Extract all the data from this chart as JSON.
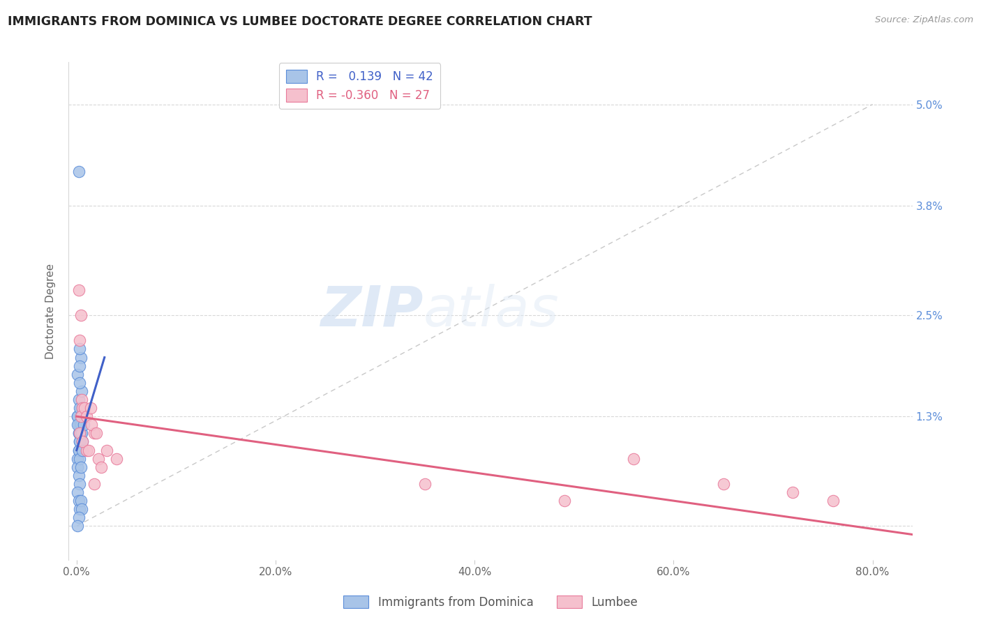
{
  "title": "IMMIGRANTS FROM DOMINICA VS LUMBEE DOCTORATE DEGREE CORRELATION CHART",
  "source": "Source: ZipAtlas.com",
  "xlabel_vals": [
    0.0,
    0.2,
    0.4,
    0.6,
    0.8
  ],
  "xlabel_labels": [
    "0.0%",
    "20.0%",
    "40.0%",
    "60.0%",
    "80.0%"
  ],
  "ylabel_vals": [
    0.0,
    0.013,
    0.025,
    0.038,
    0.05
  ],
  "ylabel_labels": [
    "",
    "1.3%",
    "2.5%",
    "3.8%",
    "5.0%"
  ],
  "xlim": [
    -0.008,
    0.84
  ],
  "ylim": [
    -0.004,
    0.055
  ],
  "blue_R": 0.139,
  "blue_N": 42,
  "pink_R": -0.36,
  "pink_N": 27,
  "blue_scatter_color": "#a8c4e8",
  "pink_scatter_color": "#f5c0cd",
  "blue_edge_color": "#5b8dd9",
  "pink_edge_color": "#e8799a",
  "blue_line_color": "#4060c8",
  "pink_line_color": "#e06080",
  "diagonal_color": "#c8c8c8",
  "grid_color": "#d8d8d8",
  "ylabel_color": "#5b8dd9",
  "legend_label_blue": "Immigrants from Dominica",
  "legend_label_pink": "Lumbee",
  "blue_line_x": [
    0.0,
    0.028
  ],
  "blue_line_y": [
    0.009,
    0.02
  ],
  "pink_line_x": [
    0.0,
    0.84
  ],
  "pink_line_y": [
    0.013,
    -0.001
  ],
  "blue_x": [
    0.002,
    0.001,
    0.003,
    0.002,
    0.004,
    0.003,
    0.001,
    0.003,
    0.002,
    0.004,
    0.005,
    0.003,
    0.004,
    0.002,
    0.001,
    0.003,
    0.004,
    0.005,
    0.002,
    0.003,
    0.004,
    0.001,
    0.002,
    0.003,
    0.005,
    0.006,
    0.007,
    0.001,
    0.002,
    0.001,
    0.003,
    0.002,
    0.004,
    0.003,
    0.006,
    0.001,
    0.002,
    0.003,
    0.004,
    0.005,
    0.002,
    0.001
  ],
  "blue_y": [
    0.042,
    0.013,
    0.012,
    0.011,
    0.02,
    0.021,
    0.018,
    0.019,
    0.015,
    0.014,
    0.016,
    0.017,
    0.013,
    0.012,
    0.013,
    0.014,
    0.012,
    0.013,
    0.011,
    0.01,
    0.011,
    0.012,
    0.009,
    0.01,
    0.011,
    0.01,
    0.012,
    0.008,
    0.009,
    0.007,
    0.008,
    0.006,
    0.007,
    0.005,
    0.009,
    0.004,
    0.003,
    0.002,
    0.003,
    0.002,
    0.001,
    0.0
  ],
  "pink_x": [
    0.002,
    0.004,
    0.003,
    0.005,
    0.006,
    0.003,
    0.004,
    0.008,
    0.01,
    0.014,
    0.018,
    0.022,
    0.01,
    0.015,
    0.02,
    0.006,
    0.012,
    0.025,
    0.03,
    0.018,
    0.04,
    0.35,
    0.49,
    0.56,
    0.65,
    0.72,
    0.76
  ],
  "pink_y": [
    0.028,
    0.025,
    0.022,
    0.015,
    0.014,
    0.011,
    0.013,
    0.014,
    0.013,
    0.014,
    0.011,
    0.008,
    0.009,
    0.012,
    0.011,
    0.01,
    0.009,
    0.007,
    0.009,
    0.005,
    0.008,
    0.005,
    0.003,
    0.008,
    0.005,
    0.004,
    0.003
  ]
}
